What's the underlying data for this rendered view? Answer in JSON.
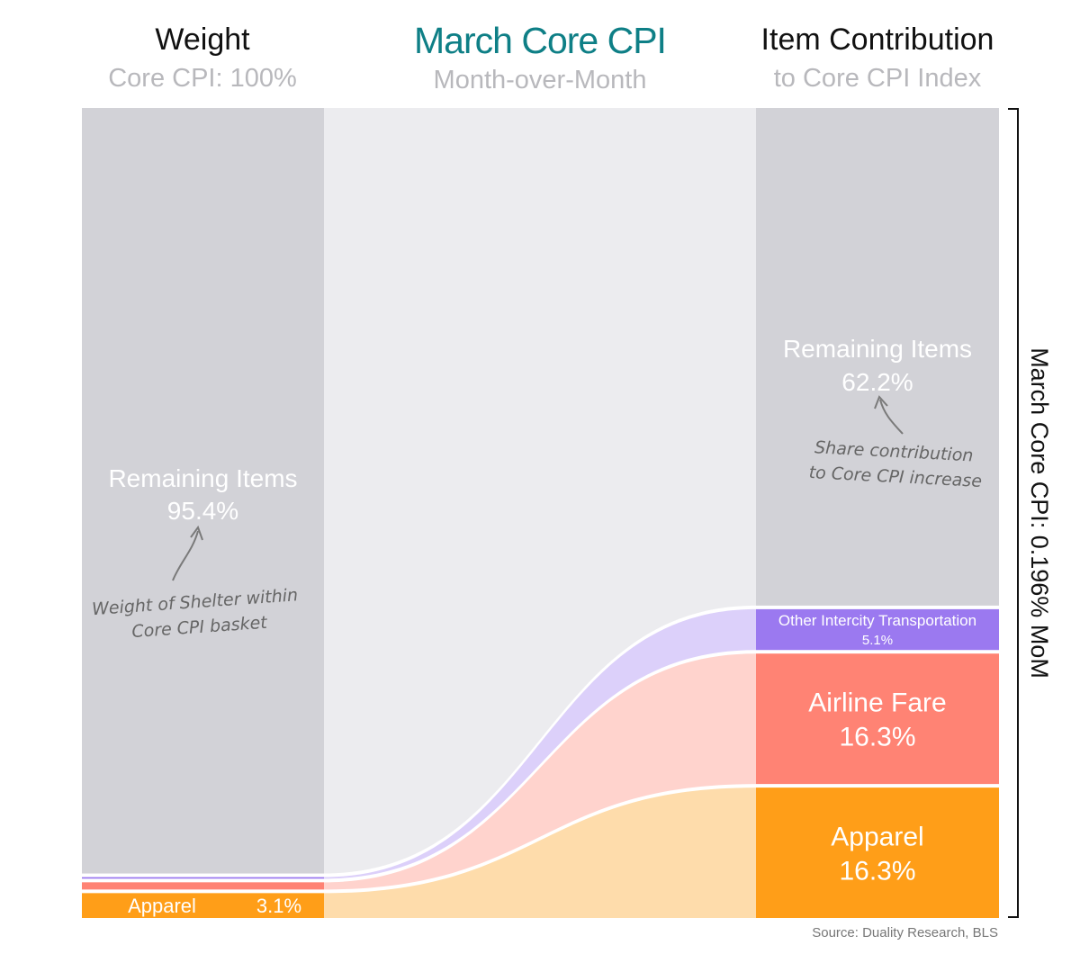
{
  "chart_data": {
    "type": "sankey",
    "title": "March Core CPI",
    "subtitle": "Month-over-Month",
    "left_header": {
      "title": "Weight",
      "subtitle": "Core CPI: 100%"
    },
    "right_header": {
      "title": "Item Contribution",
      "subtitle": "to Core CPI Index"
    },
    "left_nodes": [
      {
        "name": "Remaining Items",
        "value": 95.4,
        "label": "Remaining Items",
        "value_label": "95.4%",
        "color": "#d2d2d7"
      },
      {
        "name": "Other Intercity Transportation",
        "value": 0.2,
        "color": "#9b79f0"
      },
      {
        "name": "Airline Fare",
        "value": 0.9,
        "color": "#ff8374"
      },
      {
        "name": "Apparel",
        "value": 3.1,
        "label": "Apparel",
        "value_label": "3.1%",
        "color": "#ff9e18"
      }
    ],
    "right_nodes": [
      {
        "name": "Remaining Items",
        "value": 62.2,
        "label": "Remaining Items",
        "value_label": "62.2%",
        "color": "#d2d2d7"
      },
      {
        "name": "Other Intercity Transportation",
        "value": 5.1,
        "label": "Other Intercity Transportation",
        "value_label": "5.1%",
        "color": "#9b79f0"
      },
      {
        "name": "Airline Fare",
        "value": 16.3,
        "label": "Airline Fare",
        "value_label": "16.3%",
        "color": "#ff8374"
      },
      {
        "name": "Apparel",
        "value": 16.3,
        "label": "Apparel",
        "value_label": "16.3%",
        "color": "#ff9e18"
      }
    ],
    "flow_colors": {
      "Remaining Items": "#ececef",
      "Other Intercity Transportation": "#dcd0fa",
      "Airline Fare": "#ffd3cd",
      "Apparel": "#fedcab"
    },
    "bracket_label": "March Core CPI:  0.196% MoM",
    "annotations": {
      "left": "Weight of Shelter within\nCore CPI basket",
      "right": "Share contribution\nto Core CPI increase"
    },
    "source": "Source: Duality Research, BLS"
  },
  "title_color": "#0e7f86"
}
